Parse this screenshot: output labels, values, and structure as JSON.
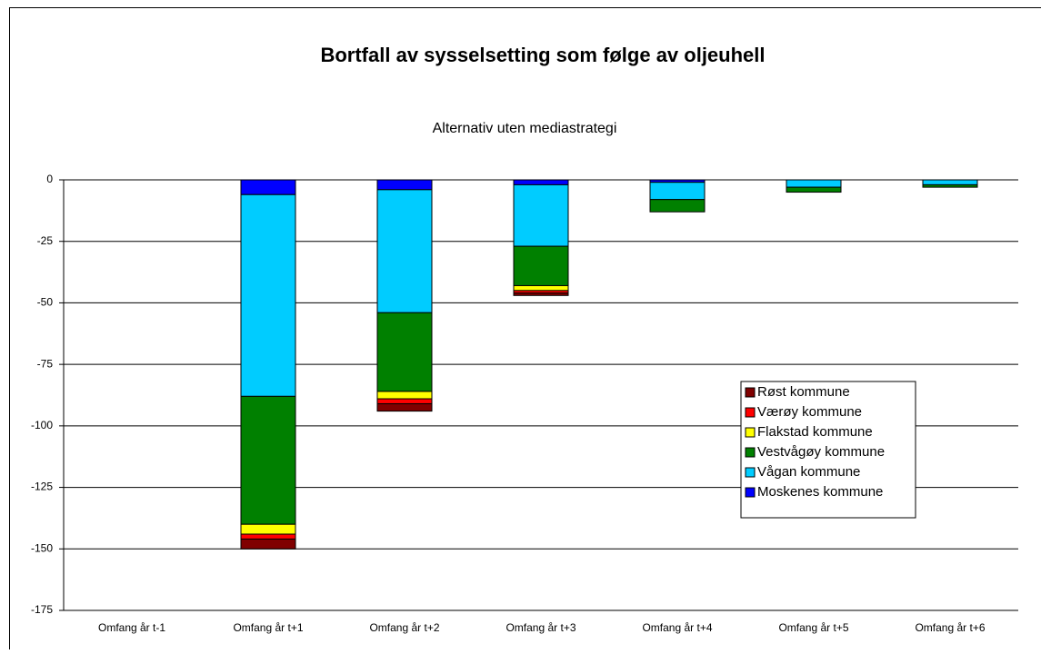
{
  "chart_data": {
    "type": "bar",
    "stacked": true,
    "title": "Bortfall av sysselsetting som følge av oljeuhell",
    "subtitle": "Alternativ uten mediastrategi",
    "categories": [
      "Omfang år t-1",
      "Omfang år t+1",
      "Omfang år t+2",
      "Omfang år t+3",
      "Omfang år t+4",
      "Omfang år t+5",
      "Omfang år t+6"
    ],
    "series": [
      {
        "name": "Moskenes kommune",
        "color": "#0000ff",
        "values": [
          0,
          -6,
          -4,
          -2,
          -1,
          0,
          0
        ]
      },
      {
        "name": "Vågan kommune",
        "color": "#00ccff",
        "values": [
          0,
          -82,
          -50,
          -25,
          -7,
          -3,
          -2
        ]
      },
      {
        "name": "Vestvågøy kommune",
        "color": "#008000",
        "values": [
          0,
          -52,
          -32,
          -16,
          -5,
          -2,
          -1
        ]
      },
      {
        "name": "Flakstad kommune",
        "color": "#ffff00",
        "values": [
          0,
          -4,
          -3,
          -2,
          0,
          0,
          0
        ]
      },
      {
        "name": "Værøy kommune",
        "color": "#ff0000",
        "values": [
          0,
          -2,
          -2,
          -1,
          0,
          0,
          0
        ]
      },
      {
        "name": "Røst kommune",
        "color": "#800000",
        "values": [
          0,
          -4,
          -3,
          -1,
          0,
          0,
          0
        ]
      }
    ],
    "ylim": [
      -175,
      0
    ],
    "yticks": [
      0,
      -25,
      -50,
      -75,
      -100,
      -125,
      -150,
      -175
    ],
    "grid": true,
    "legend": "right"
  }
}
